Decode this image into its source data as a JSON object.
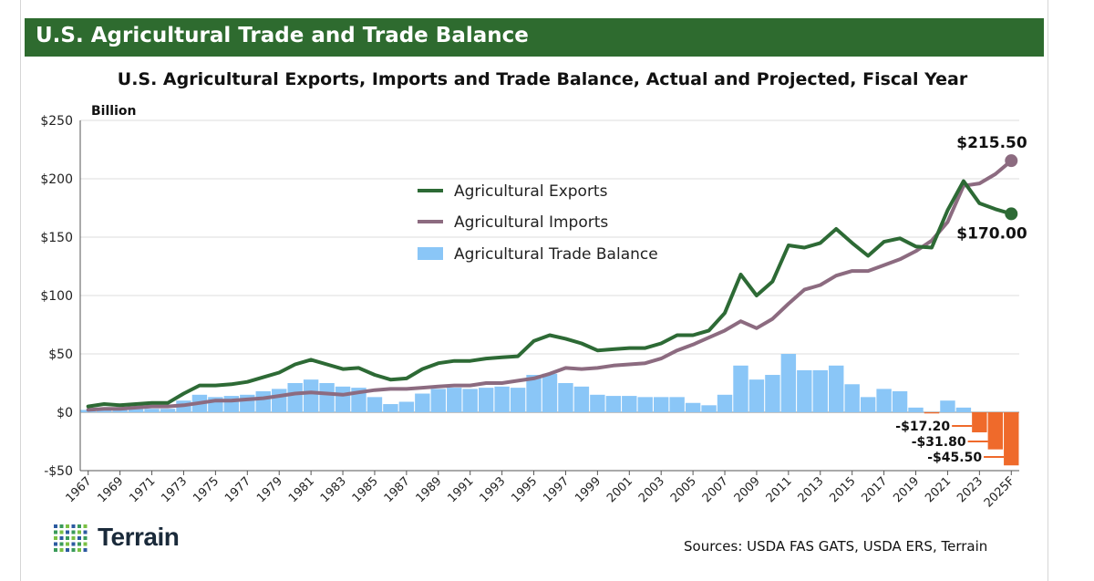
{
  "banner": {
    "title": "U.S. Agricultural Trade and Trade Balance"
  },
  "footer": {
    "logo_text": "Terrain",
    "sources": "Sources: USDA FAS GATS, USDA ERS, Terrain"
  },
  "colors": {
    "banner": "#2e6b2f",
    "exports": "#2d6a35",
    "imports": "#8c6b80",
    "balance_positive": "#8ac6f7",
    "balance_negative": "#ef6a2b",
    "logo_dots": [
      "#2c5aa0",
      "#3a9a5a",
      "#7ac043"
    ]
  },
  "chart_data": {
    "type": "line",
    "title": "U.S. Agricultural Exports, Imports and Trade Balance, Actual and Projected, Fiscal Year",
    "ylabel": "Billion",
    "ylim": [
      -50,
      250
    ],
    "yticks": [
      -50,
      0,
      50,
      100,
      150,
      200,
      250
    ],
    "ytick_labels": [
      "-$50",
      "$0",
      "$50",
      "$100",
      "$150",
      "$200",
      "$250"
    ],
    "x": [
      "1967",
      "1968",
      "1969",
      "1970",
      "1971",
      "1972",
      "1973",
      "1974",
      "1975",
      "1976",
      "1977",
      "1978",
      "1979",
      "1980",
      "1981",
      "1982",
      "1983",
      "1984",
      "1985",
      "1986",
      "1987",
      "1988",
      "1989",
      "1990",
      "1991",
      "1992",
      "1993",
      "1994",
      "1995",
      "1996",
      "1997",
      "1998",
      "1999",
      "2000",
      "2001",
      "2002",
      "2003",
      "2004",
      "2005",
      "2006",
      "2007",
      "2008",
      "2009",
      "2010",
      "2011",
      "2012",
      "2013",
      "2014",
      "2015",
      "2016",
      "2017",
      "2018",
      "2019",
      "2020",
      "2021",
      "2022",
      "2023",
      "2024",
      "2025F"
    ],
    "xtick_labels": [
      "1967",
      "1969",
      "1971",
      "1973",
      "1975",
      "1977",
      "1979",
      "1981",
      "1983",
      "1985",
      "1987",
      "1989",
      "1991",
      "1993",
      "1995",
      "1997",
      "1999",
      "2001",
      "2003",
      "2005",
      "2007",
      "2009",
      "2011",
      "2013",
      "2015",
      "2017",
      "2019",
      "2021",
      "2023",
      "2025F"
    ],
    "series": [
      {
        "name": "Agricultural Exports",
        "kind": "line",
        "values": [
          5,
          7,
          6,
          7,
          8,
          8,
          16,
          23,
          23,
          24,
          26,
          30,
          34,
          41,
          45,
          41,
          37,
          38,
          32,
          28,
          29,
          37,
          42,
          44,
          44,
          46,
          47,
          48,
          61,
          66,
          63,
          59,
          53,
          54,
          55,
          55,
          59,
          66,
          66,
          70,
          85,
          118,
          100,
          112,
          143,
          141,
          145,
          157,
          145,
          134,
          146,
          149,
          142,
          141,
          173,
          198,
          179,
          174,
          170
        ]
      },
      {
        "name": "Agricultural Imports",
        "kind": "line",
        "values": [
          2,
          3,
          3,
          4,
          5,
          5,
          6,
          8,
          10,
          10,
          11,
          12,
          14,
          16,
          17,
          16,
          15,
          17,
          19,
          20,
          20,
          21,
          22,
          23,
          23,
          25,
          25,
          27,
          29,
          33,
          38,
          37,
          38,
          40,
          41,
          42,
          46,
          53,
          58,
          64,
          70,
          78,
          72,
          80,
          93,
          105,
          109,
          117,
          121,
          121,
          126,
          131,
          138,
          147,
          163,
          194,
          196,
          204,
          215.5
        ]
      },
      {
        "name": "Agricultural Trade Balance",
        "kind": "bar",
        "values": [
          2,
          4,
          3,
          3,
          3,
          3,
          10,
          15,
          13,
          14,
          15,
          18,
          20,
          25,
          28,
          25,
          22,
          21,
          13,
          7,
          9,
          16,
          20,
          21,
          20,
          21,
          22,
          21,
          32,
          33,
          25,
          22,
          15,
          14,
          14,
          13,
          13,
          13,
          8,
          6,
          15,
          40,
          28,
          32,
          50,
          36,
          36,
          40,
          24,
          13,
          20,
          18,
          4,
          -1,
          10,
          4,
          -17.2,
          -31.8,
          -45.5
        ]
      }
    ],
    "annotations": [
      {
        "text": "$215.50"
      },
      {
        "text": "$170.00"
      },
      {
        "text": "-$17.20"
      },
      {
        "text": "-$31.80"
      },
      {
        "text": "-$45.50"
      }
    ],
    "legend": {
      "placement": "center-top"
    },
    "grid": true
  }
}
